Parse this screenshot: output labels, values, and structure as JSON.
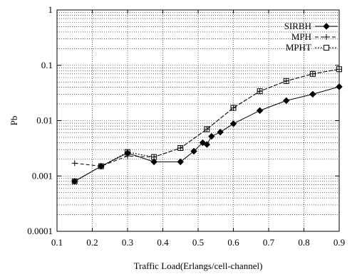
{
  "chart_data": {
    "type": "line",
    "xlabel": "Traffic Load(Erlangs/cell-channel)",
    "ylabel": "Pb",
    "y_scale": "log",
    "xlim": [
      0.1,
      0.9
    ],
    "ylim": [
      0.0001,
      1
    ],
    "grid": true,
    "legend_position": "top-right",
    "x_ticks": [
      "0.1",
      "0.2",
      "0.3",
      "0.4",
      "0.5",
      "0.6",
      "0.7",
      "0.8",
      "0.9"
    ],
    "y_ticks": [
      "0.0001",
      "0.001",
      "0.01",
      "0.1",
      "1"
    ],
    "series": [
      {
        "name": "SIRBH",
        "marker": "diamond",
        "line": "solid",
        "x": [
          0.15,
          0.225,
          0.3,
          0.375,
          0.45,
          0.488,
          0.513,
          0.525,
          0.538,
          0.563,
          0.6,
          0.675,
          0.75,
          0.825,
          0.9
        ],
        "y": [
          0.0008,
          0.0015,
          0.0026,
          0.0018,
          0.0018,
          0.0028,
          0.004,
          0.0037,
          0.0052,
          0.0062,
          0.0088,
          0.0152,
          0.023,
          0.03,
          0.041
        ]
      },
      {
        "name": "MPH",
        "marker": "plus",
        "line": "dashed",
        "x": [
          0.15,
          0.225,
          0.3,
          0.375,
          0.45,
          0.525,
          0.6,
          0.675,
          0.75,
          0.825,
          0.9
        ],
        "y": [
          0.0017,
          0.0015,
          0.0023,
          0.0022,
          0.0032,
          0.007,
          0.017,
          0.034,
          0.052,
          0.07,
          0.085
        ]
      },
      {
        "name": "MPHT",
        "marker": "square",
        "line": "dotted",
        "x": [
          0.15,
          0.225,
          0.3,
          0.375,
          0.45,
          0.525,
          0.6,
          0.675,
          0.75,
          0.825,
          0.9
        ],
        "y": [
          0.0008,
          0.0015,
          0.0027,
          0.0022,
          0.0032,
          0.007,
          0.017,
          0.034,
          0.052,
          0.07,
          0.085
        ]
      }
    ]
  }
}
